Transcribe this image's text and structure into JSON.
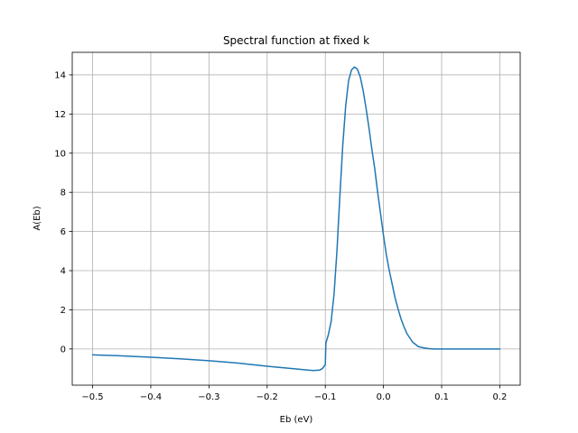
{
  "chart_data": {
    "type": "line",
    "title": "Spectral function at fixed k",
    "xlabel": "Eb (eV)",
    "ylabel": "A(Eb)",
    "xlim": [
      -0.535,
      0.235
    ],
    "ylim": [
      -1.85,
      15.15
    ],
    "x_ticks": [
      -0.5,
      -0.4,
      -0.3,
      -0.2,
      -0.1,
      0.0,
      0.1,
      0.2
    ],
    "x_tick_labels": [
      "−0.5",
      "−0.4",
      "−0.3",
      "−0.2",
      "−0.1",
      "0.0",
      "0.1",
      "0.2"
    ],
    "y_ticks": [
      0,
      2,
      4,
      6,
      8,
      10,
      12,
      14
    ],
    "y_tick_labels": [
      "0",
      "2",
      "4",
      "6",
      "8",
      "10",
      "12",
      "14"
    ],
    "grid": true,
    "series": [
      {
        "color": "#1f77b4",
        "x": [
          -0.5,
          -0.45,
          -0.4,
          -0.35,
          -0.3,
          -0.25,
          -0.2,
          -0.15,
          -0.13,
          -0.12,
          -0.11,
          -0.105,
          -0.1,
          -0.099,
          -0.095,
          -0.09,
          -0.085,
          -0.08,
          -0.075,
          -0.07,
          -0.065,
          -0.06,
          -0.055,
          -0.05,
          -0.045,
          -0.04,
          -0.035,
          -0.03,
          -0.025,
          -0.02,
          -0.015,
          -0.01,
          -0.005,
          0.0,
          0.005,
          0.01,
          0.015,
          0.02,
          0.025,
          0.03,
          0.035,
          0.04,
          0.05,
          0.06,
          0.07,
          0.08,
          0.09,
          0.1,
          0.15,
          0.2
        ],
        "y": [
          -0.3,
          -0.35,
          -0.42,
          -0.5,
          -0.6,
          -0.72,
          -0.88,
          -1.02,
          -1.08,
          -1.1,
          -1.08,
          -1.0,
          -0.8,
          0.3,
          0.7,
          1.4,
          2.8,
          5.0,
          7.8,
          10.4,
          12.4,
          13.7,
          14.25,
          14.4,
          14.3,
          13.9,
          13.2,
          12.3,
          11.3,
          10.2,
          9.2,
          8.0,
          6.9,
          5.8,
          4.8,
          4.0,
          3.3,
          2.6,
          2.05,
          1.55,
          1.15,
          0.8,
          0.35,
          0.12,
          0.05,
          0.01,
          0.0,
          0.0,
          0.0,
          0.0
        ]
      }
    ]
  }
}
